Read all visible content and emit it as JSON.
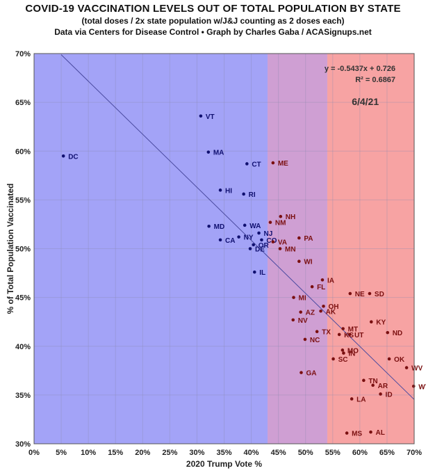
{
  "title": "COVID-19 VACCINATION LEVELS OUT OF TOTAL POPULATION BY STATE",
  "subtitle1": "(total doses / 2x state population w/J&J counting as 2 doses each)",
  "subtitle2": "Data via Centers for Disease Control • Graph by Charles Gaba / ACASignups.net",
  "chart_data": {
    "type": "scatter",
    "xlabel": "2020 Trump Vote %",
    "ylabel": "% of Total Population Vaccinated",
    "xlim": [
      0,
      70
    ],
    "ylim": [
      30,
      70
    ],
    "x_ticks": [
      "0%",
      "5%",
      "10%",
      "15%",
      "20%",
      "25%",
      "30%",
      "35%",
      "40%",
      "45%",
      "50%",
      "55%",
      "60%",
      "65%",
      "70%"
    ],
    "y_ticks": [
      "30%",
      "35%",
      "40%",
      "45%",
      "50%",
      "55%",
      "60%",
      "65%",
      "70%"
    ],
    "grid": true,
    "trendline": {
      "equation": "y = -0.5437x + 0.726",
      "r2": "R² = 0.6867",
      "slope": -0.5437,
      "intercept": 0.726
    },
    "date_label": "6/4/21",
    "background_bands": [
      {
        "from": 0,
        "to": 43,
        "color": "#a3a3f7"
      },
      {
        "from": 43,
        "to": 54,
        "color": "#cf9fd3"
      },
      {
        "from": 54,
        "to": 70,
        "color": "#f7a3a3"
      }
    ],
    "points": [
      {
        "label": "DC",
        "x": 5.4,
        "y": 59.5
      },
      {
        "label": "VT",
        "x": 30.7,
        "y": 63.6
      },
      {
        "label": "MA",
        "x": 32.1,
        "y": 59.9
      },
      {
        "label": "CT",
        "x": 39.2,
        "y": 58.7
      },
      {
        "label": "ME",
        "x": 44.0,
        "y": 58.8
      },
      {
        "label": "HI",
        "x": 34.3,
        "y": 56.0
      },
      {
        "label": "RI",
        "x": 38.6,
        "y": 55.6
      },
      {
        "label": "NH",
        "x": 45.4,
        "y": 53.3
      },
      {
        "label": "NM",
        "x": 43.5,
        "y": 52.7
      },
      {
        "label": "MD",
        "x": 32.2,
        "y": 52.3
      },
      {
        "label": "WA",
        "x": 38.8,
        "y": 52.4
      },
      {
        "label": "NJ",
        "x": 41.4,
        "y": 51.6
      },
      {
        "label": "NY",
        "x": 37.7,
        "y": 51.2
      },
      {
        "label": "CA",
        "x": 34.3,
        "y": 50.9
      },
      {
        "label": "CO",
        "x": 41.9,
        "y": 50.9
      },
      {
        "label": "PA",
        "x": 48.8,
        "y": 51.1
      },
      {
        "label": "VA",
        "x": 44.0,
        "y": 50.7
      },
      {
        "label": "OR",
        "x": 40.4,
        "y": 50.4
      },
      {
        "label": "DE",
        "x": 39.8,
        "y": 50.0
      },
      {
        "label": "MN",
        "x": 45.3,
        "y": 50.0
      },
      {
        "label": "WI",
        "x": 48.8,
        "y": 48.7
      },
      {
        "label": "IL",
        "x": 40.6,
        "y": 47.6
      },
      {
        "label": "IA",
        "x": 53.1,
        "y": 46.8
      },
      {
        "label": "FL",
        "x": 51.2,
        "y": 46.1
      },
      {
        "label": "NE",
        "x": 58.2,
        "y": 45.4
      },
      {
        "label": "SD",
        "x": 61.8,
        "y": 45.4
      },
      {
        "label": "MI",
        "x": 47.8,
        "y": 45.0
      },
      {
        "label": "OH",
        "x": 53.3,
        "y": 44.1
      },
      {
        "label": "AZ",
        "x": 49.1,
        "y": 43.5
      },
      {
        "label": "AK",
        "x": 52.8,
        "y": 43.6
      },
      {
        "label": "NV",
        "x": 47.7,
        "y": 42.7
      },
      {
        "label": "KY",
        "x": 62.1,
        "y": 42.5
      },
      {
        "label": "MT",
        "x": 56.9,
        "y": 41.8
      },
      {
        "label": "UT",
        "x": 58.1,
        "y": 41.2
      },
      {
        "label": "TX",
        "x": 52.1,
        "y": 41.5
      },
      {
        "label": "ND",
        "x": 65.1,
        "y": 41.4
      },
      {
        "label": "KS",
        "x": 56.2,
        "y": 41.2
      },
      {
        "label": "NC",
        "x": 49.9,
        "y": 40.7
      },
      {
        "label": "MO",
        "x": 56.8,
        "y": 39.6
      },
      {
        "label": "IN",
        "x": 57.0,
        "y": 39.3
      },
      {
        "label": "OK",
        "x": 65.4,
        "y": 38.7
      },
      {
        "label": "SC",
        "x": 55.1,
        "y": 38.7
      },
      {
        "label": "WV",
        "x": 68.6,
        "y": 37.8
      },
      {
        "label": "GA",
        "x": 49.2,
        "y": 37.3
      },
      {
        "label": "TN",
        "x": 60.7,
        "y": 36.5
      },
      {
        "label": "AR",
        "x": 62.4,
        "y": 36.0
      },
      {
        "label": "WY",
        "x": 69.9,
        "y": 35.9
      },
      {
        "label": "ID",
        "x": 63.8,
        "y": 35.1
      },
      {
        "label": "LA",
        "x": 58.5,
        "y": 34.6
      },
      {
        "label": "MS",
        "x": 57.6,
        "y": 31.1
      },
      {
        "label": "AL",
        "x": 62.0,
        "y": 31.2
      }
    ]
  }
}
